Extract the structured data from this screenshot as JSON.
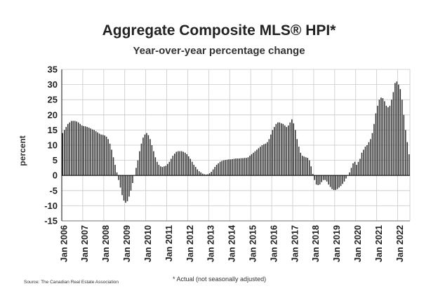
{
  "chart_data": {
    "type": "bar",
    "title": "Aggregate Composite MLS® HPI*",
    "subtitle": "Year-over-year percentage change",
    "ylabel": "percent",
    "xlabel": "",
    "ylim": [
      -15,
      35
    ],
    "yticks": [
      -15,
      -10,
      -5,
      0,
      5,
      10,
      15,
      20,
      25,
      30,
      35
    ],
    "xtick_labels": [
      "Jan 2006",
      "Jan 2007",
      "Jan 2008",
      "Jan 2009",
      "Jan 2010",
      "Jan 2011",
      "Jan 2012",
      "Jan 2013",
      "Jan 2014",
      "Jan 2015",
      "Jan 2016",
      "Jan 2017",
      "Jan 2018",
      "Jan 2019",
      "Jan 2020",
      "Jan 2021",
      "Jan 2022"
    ],
    "grid": true,
    "legend": "none",
    "bar_color": "#333333",
    "grid_color": "#c8c8c8",
    "series": [
      {
        "frequency": "monthly",
        "start": "Jan 2006",
        "values": [
          14,
          15,
          16,
          17,
          17.5,
          18,
          18,
          18,
          17.8,
          17.5,
          17,
          16.5,
          16.3,
          16.2,
          16,
          15.8,
          15.5,
          15.2,
          15,
          14.6,
          14.2,
          13.8,
          13.5,
          13.4,
          13.2,
          12.8,
          12,
          10.5,
          8.5,
          6,
          3.5,
          1,
          -1.5,
          -4,
          -6.5,
          -8.3,
          -9,
          -8.5,
          -7,
          -5,
          -2.5,
          0,
          2.5,
          5,
          8,
          10.5,
          12.5,
          13.5,
          14,
          13.3,
          12,
          10,
          8,
          6,
          4.5,
          3.5,
          3,
          2.8,
          3,
          3.2,
          3.8,
          4.5,
          5.5,
          6.5,
          7.2,
          7.8,
          8,
          8,
          8,
          7.8,
          7.5,
          7,
          6.3,
          5.5,
          4.5,
          3.5,
          2.8,
          2,
          1.4,
          1,
          0.6,
          0.4,
          0.3,
          0.4,
          0.7,
          1.2,
          2,
          2.8,
          3.5,
          4,
          4.5,
          4.8,
          5,
          5.1,
          5.2,
          5.3,
          5.3,
          5.4,
          5.5,
          5.6,
          5.6,
          5.6,
          5.7,
          5.7,
          5.8,
          5.8,
          6,
          6.5,
          7,
          7.5,
          8,
          8.5,
          9,
          9.5,
          10,
          10.3,
          10.5,
          11,
          12,
          13.5,
          15,
          16,
          17,
          17.5,
          17.5,
          17.2,
          17,
          16.5,
          16,
          16.5,
          17.5,
          18.5,
          17.2,
          15,
          12,
          9.5,
          7.5,
          6.5,
          6.2,
          6,
          5.8,
          5,
          3,
          0.5,
          -1.5,
          -3,
          -3.2,
          -3,
          -2.2,
          -1.5,
          -1.5,
          -2,
          -3,
          -3.8,
          -4.5,
          -4.8,
          -4.8,
          -4.5,
          -4,
          -3.5,
          -2.8,
          -2,
          -1,
          0,
          1,
          2.5,
          4,
          4.5,
          3.5,
          4.5,
          5.5,
          7.5,
          8.5,
          9.5,
          10,
          11,
          12,
          14,
          17,
          20.5,
          23,
          25,
          25.7,
          25.5,
          24.5,
          23,
          22.5,
          23,
          25,
          27.5,
          30.5,
          31,
          30,
          28.5,
          25,
          20,
          15,
          11,
          7
        ]
      }
    ]
  },
  "footnote": "* Actual (not seasonally adjusted)",
  "source": "Source: The Canadian Real Estate Association"
}
